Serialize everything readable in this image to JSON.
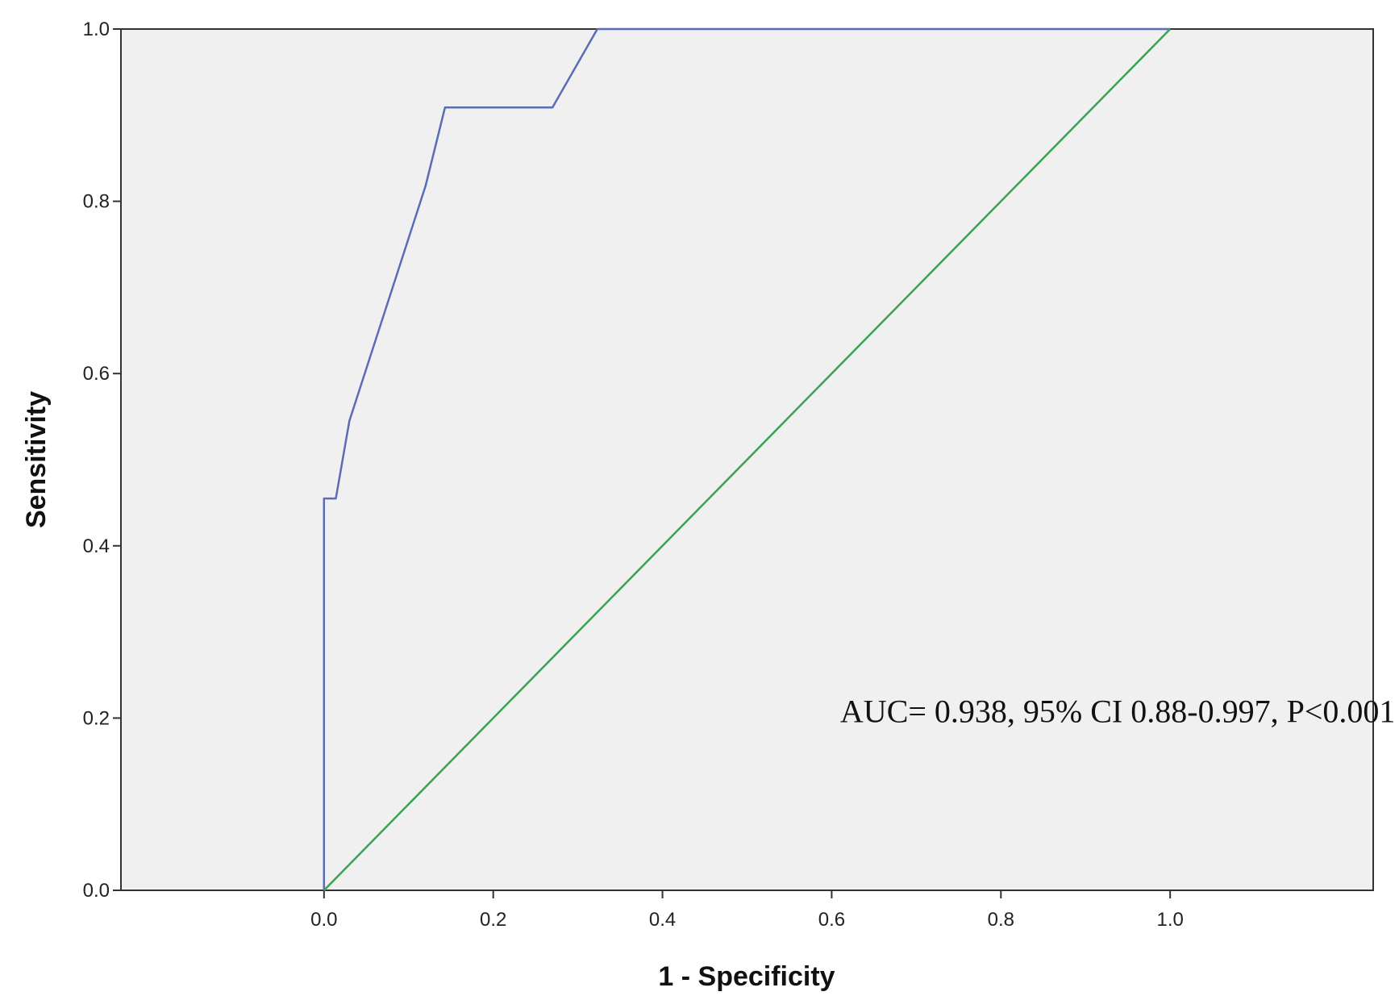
{
  "chart_data": {
    "type": "line",
    "title": "",
    "xlabel": "1 - Specificity",
    "ylabel": "Sensitivity",
    "xlim": [
      -0.24,
      1.24
    ],
    "ylim": [
      0,
      1
    ],
    "x_ticks": [
      "0.0",
      "0.2",
      "0.4",
      "0.6",
      "0.8",
      "1.0"
    ],
    "y_ticks": [
      "0.0",
      "0.2",
      "0.4",
      "0.6",
      "0.8",
      "1.0"
    ],
    "grid": false,
    "legend": "none",
    "background_color": "#f0f0f0",
    "series": [
      {
        "color": "#5b6cb5",
        "x": [
          0.0,
          0.0,
          0.014,
          0.03,
          0.06,
          0.09,
          0.12,
          0.143,
          0.27,
          0.323,
          1.0
        ],
        "y": [
          0.0,
          0.455,
          0.455,
          0.545,
          0.636,
          0.727,
          0.818,
          0.909,
          0.909,
          1.0,
          1.0
        ]
      },
      {
        "color": "#3aa352",
        "x": [
          0.0,
          1.0
        ],
        "y": [
          0.0,
          1.0
        ]
      }
    ],
    "annotations": [
      {
        "text": "AUC= 0.938, 95% CI 0.88-0.997, P<0.001",
        "x": 0.61,
        "y": 0.195
      }
    ]
  }
}
